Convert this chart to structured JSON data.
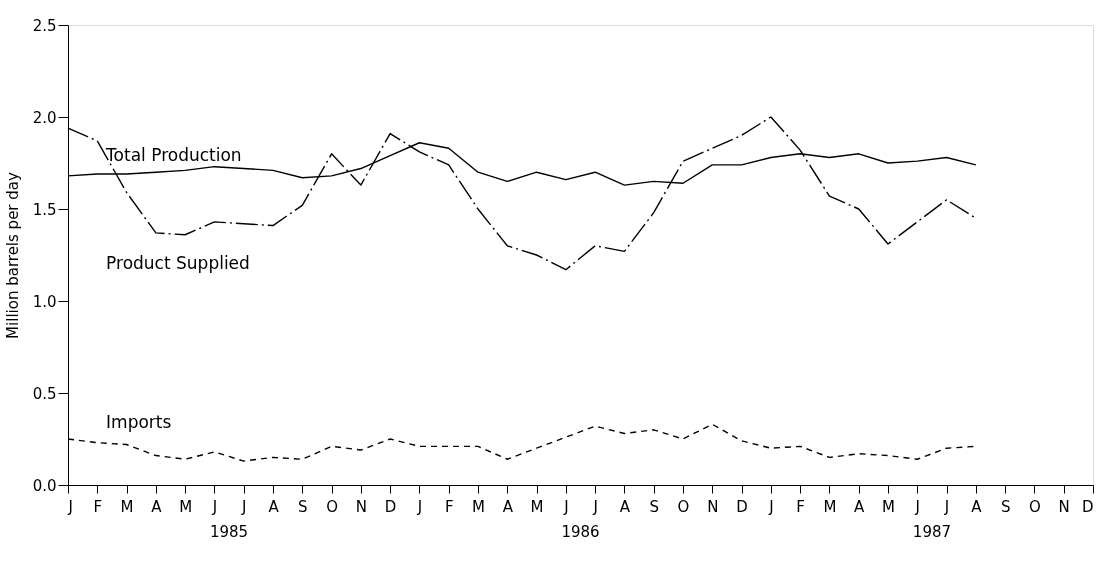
{
  "chart_data": {
    "type": "line",
    "ylabel": "Million barrels per day",
    "categories": [
      "J",
      "F",
      "M",
      "A",
      "M",
      "J",
      "J",
      "A",
      "S",
      "O",
      "N",
      "D",
      "J",
      "F",
      "M",
      "A",
      "M",
      "J",
      "J",
      "A",
      "S",
      "O",
      "N",
      "D",
      "J",
      "F",
      "M",
      "A",
      "M",
      "J",
      "J",
      "A",
      "S",
      "O",
      "N",
      "D"
    ],
    "series": [
      {
        "name": "Total Production",
        "color": "#000000",
        "line_style": "solid",
        "values": [
          1.68,
          1.69,
          1.69,
          1.7,
          1.71,
          1.73,
          1.72,
          1.71,
          1.67,
          1.68,
          1.72,
          1.79,
          1.86,
          1.83,
          1.7,
          1.65,
          1.7,
          1.66,
          1.7,
          1.63,
          1.65,
          1.64,
          1.74,
          1.74,
          1.78,
          1.8,
          1.78,
          1.8,
          1.75,
          1.76,
          1.78,
          1.74,
          null,
          null,
          null,
          null
        ]
      },
      {
        "name": "Product Supplied",
        "color": "#000000",
        "line_style": "dashdot",
        "values": [
          1.94,
          1.87,
          1.59,
          1.37,
          1.36,
          1.43,
          1.42,
          1.41,
          1.52,
          1.8,
          1.63,
          1.91,
          1.81,
          1.74,
          1.5,
          1.3,
          1.25,
          1.17,
          1.3,
          1.27,
          1.48,
          1.76,
          1.83,
          1.9,
          2.0,
          1.82,
          1.57,
          1.5,
          1.31,
          1.43,
          1.55,
          1.45,
          null,
          null,
          null,
          null
        ]
      },
      {
        "name": "Imports",
        "color": "#000000",
        "line_style": "dashed",
        "values": [
          0.25,
          0.23,
          0.22,
          0.16,
          0.14,
          0.18,
          0.13,
          0.15,
          0.14,
          0.21,
          0.19,
          0.25,
          0.21,
          0.21,
          0.21,
          0.14,
          0.2,
          0.26,
          0.32,
          0.28,
          0.3,
          0.25,
          0.33,
          0.24,
          0.2,
          0.21,
          0.15,
          0.17,
          0.16,
          0.14,
          0.2,
          0.21,
          null,
          null,
          null,
          null
        ]
      }
    ],
    "annotations": [
      "1985",
      "1986",
      "1987"
    ],
    "ylim": [
      0,
      2.5
    ],
    "yticks": [
      {
        "value": 0,
        "label": "0.0"
      },
      {
        "value": 0.5,
        "label": "0.5"
      },
      {
        "value": 1,
        "label": "1.0"
      },
      {
        "value": 1.5,
        "label": "1.5"
      },
      {
        "value": 2,
        "label": "2.0"
      },
      {
        "value": 2.5,
        "label": "2.5"
      }
    ],
    "grid": false,
    "legend": false
  }
}
